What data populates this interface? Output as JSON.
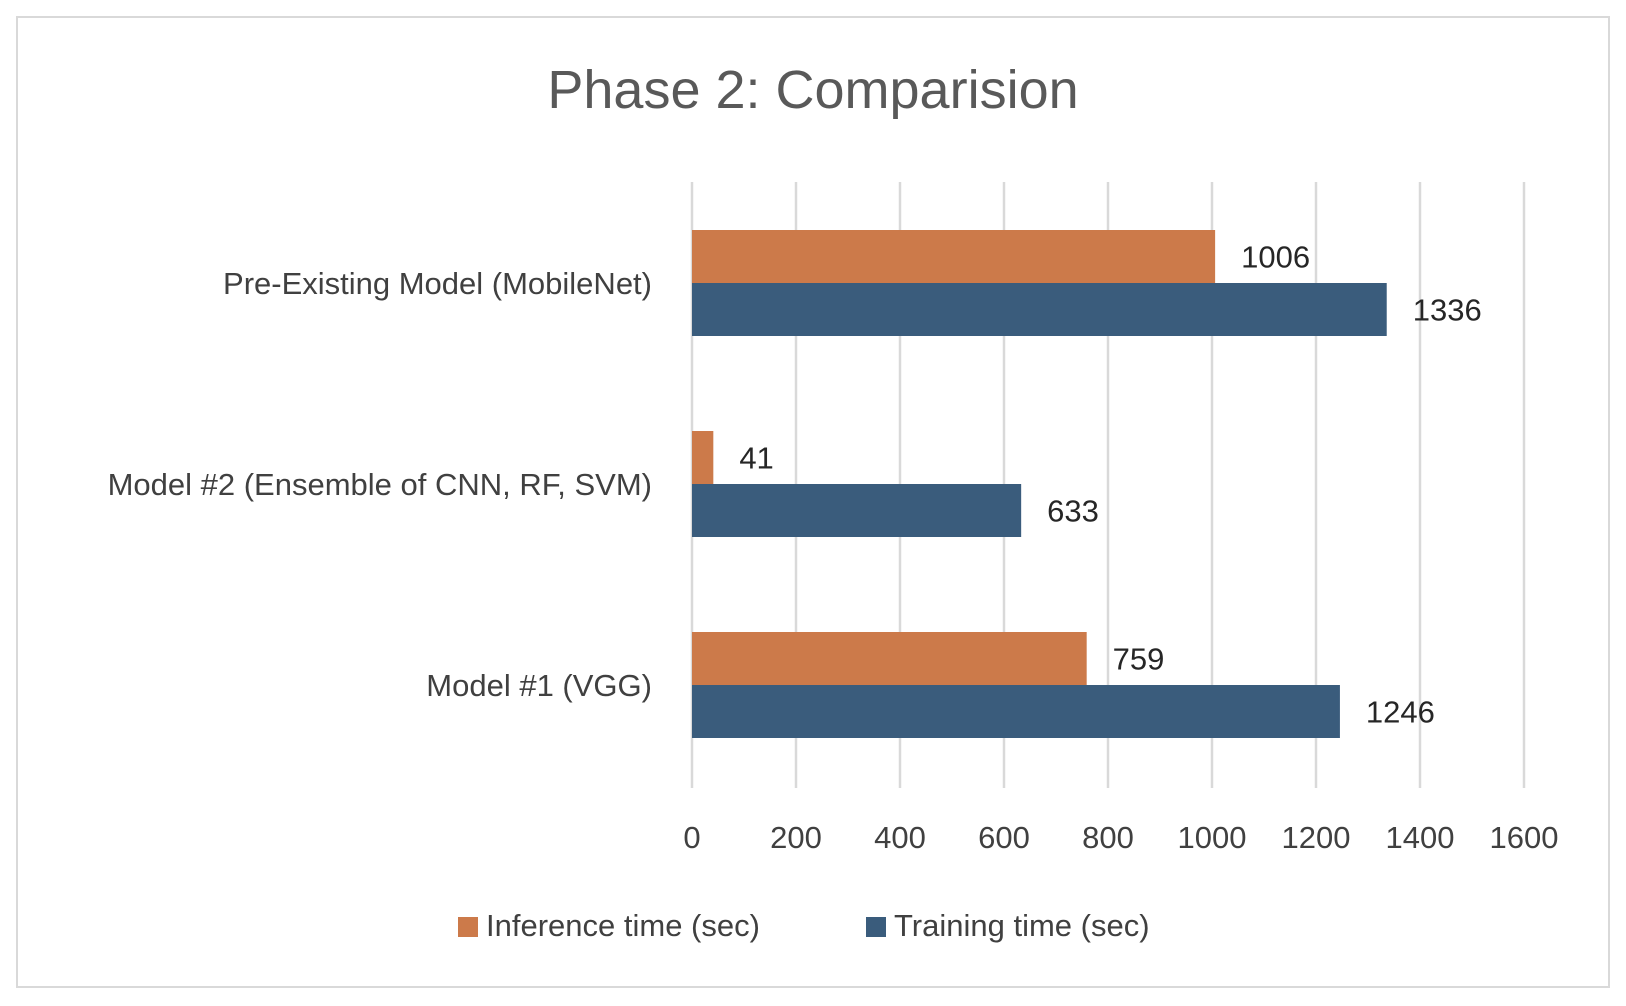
{
  "chart_data": {
    "type": "bar",
    "orientation": "horizontal",
    "title": "Phase 2: Comparision",
    "categories": [
      "Pre-Existing Model (MobileNet)",
      "Model #2 (Ensemble of CNN, RF, SVM)",
      "Model #1 (VGG)"
    ],
    "series": [
      {
        "name": "Inference time (sec)",
        "values": [
          1006,
          41,
          759
        ],
        "color": "#CC7A4A"
      },
      {
        "name": "Training time (sec)",
        "values": [
          1336,
          633,
          1246
        ],
        "color": "#3A5C7C"
      }
    ],
    "xticks": [
      "0",
      "200",
      "400",
      "600",
      "800",
      "1000",
      "1200",
      "1400",
      "1600"
    ],
    "xlim": [
      0,
      1600
    ],
    "grid": "vertical",
    "legend": "bottom",
    "data_labels": true
  }
}
